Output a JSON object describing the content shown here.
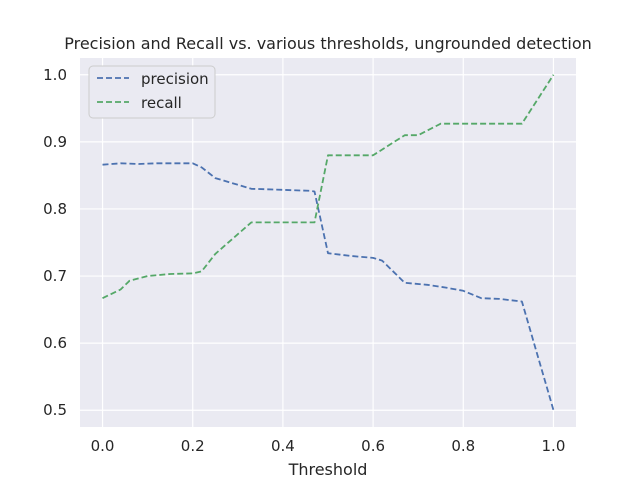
{
  "chart_data": {
    "type": "line",
    "title": "Precision and Recall vs. various thresholds, ungrounded detection",
    "xlabel": "Threshold",
    "ylabel": "",
    "xlim": [
      -0.05,
      1.05
    ],
    "ylim": [
      0.475,
      1.025
    ],
    "xticks": [
      0.0,
      0.2,
      0.4,
      0.6,
      0.8,
      1.0
    ],
    "xtick_labels": [
      "0.0",
      "0.2",
      "0.4",
      "0.6",
      "0.8",
      "1.0"
    ],
    "yticks": [
      0.5,
      0.6,
      0.7,
      0.8,
      0.9,
      1.0
    ],
    "ytick_labels": [
      "0.5",
      "0.6",
      "0.7",
      "0.8",
      "0.9",
      "1.0"
    ],
    "grid": true,
    "legend_position": "top-left",
    "series": [
      {
        "name": "precision",
        "color": "#4c72b0",
        "style": "dashed",
        "x": [
          0.0,
          0.04,
          0.08,
          0.12,
          0.16,
          0.2,
          0.22,
          0.25,
          0.28,
          0.33,
          0.38,
          0.42,
          0.46,
          0.47,
          0.5,
          0.55,
          0.6,
          0.62,
          0.67,
          0.72,
          0.76,
          0.8,
          0.84,
          0.88,
          0.93,
          1.0
        ],
        "values": [
          0.866,
          0.868,
          0.867,
          0.868,
          0.868,
          0.868,
          0.862,
          0.846,
          0.84,
          0.83,
          0.829,
          0.828,
          0.827,
          0.826,
          0.734,
          0.73,
          0.727,
          0.723,
          0.69,
          0.687,
          0.683,
          0.678,
          0.667,
          0.666,
          0.662,
          0.5
        ]
      },
      {
        "name": "recall",
        "color": "#55a868",
        "style": "dashed",
        "x": [
          0.0,
          0.04,
          0.06,
          0.1,
          0.15,
          0.2,
          0.22,
          0.25,
          0.33,
          0.4,
          0.46,
          0.47,
          0.5,
          0.6,
          0.67,
          0.7,
          0.75,
          0.8,
          0.85,
          0.93,
          1.0
        ],
        "values": [
          0.667,
          0.68,
          0.693,
          0.7,
          0.703,
          0.704,
          0.707,
          0.733,
          0.78,
          0.78,
          0.78,
          0.78,
          0.88,
          0.88,
          0.91,
          0.91,
          0.927,
          0.927,
          0.927,
          0.927,
          1.0
        ]
      }
    ]
  }
}
